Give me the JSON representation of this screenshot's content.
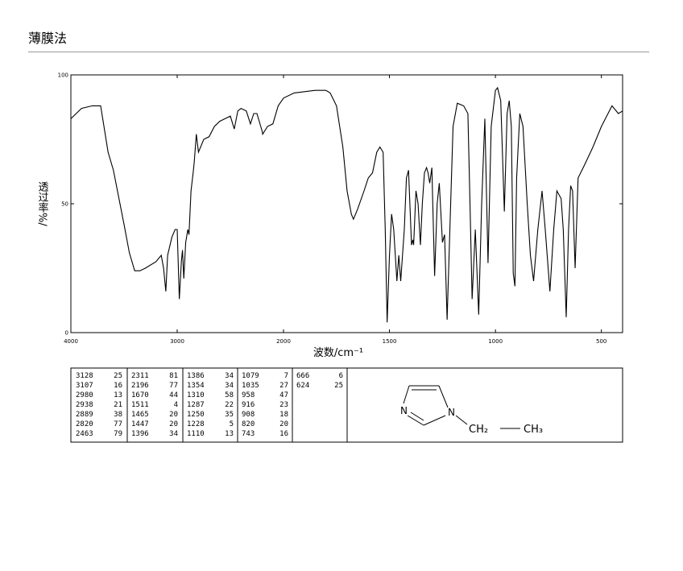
{
  "header": {
    "title": "薄膜法"
  },
  "chart_data": {
    "type": "line",
    "xlabel": "波数/cm⁻¹",
    "ylabel": "透过率%/",
    "xlim": [
      4000,
      400
    ],
    "x_scale_change": 2000,
    "ylim": [
      0,
      100
    ],
    "xticks": [
      4000,
      3000,
      2000,
      1500,
      1000,
      500
    ],
    "yticks": [
      0,
      50,
      100
    ],
    "color": "#000000",
    "x": [
      4000,
      3900,
      3800,
      3720,
      3650,
      3600,
      3500,
      3450,
      3400,
      3350,
      3300,
      3200,
      3150,
      3128,
      3107,
      3090,
      3050,
      3020,
      3000,
      2980,
      2960,
      2950,
      2938,
      2920,
      2900,
      2889,
      2870,
      2850,
      2840,
      2820,
      2800,
      2750,
      2700,
      2650,
      2600,
      2550,
      2500,
      2463,
      2430,
      2400,
      2350,
      2311,
      2280,
      2250,
      2200,
      2196,
      2150,
      2100,
      2050,
      2000,
      1950,
      1900,
      1850,
      1800,
      1780,
      1750,
      1720,
      1700,
      1680,
      1670,
      1650,
      1620,
      1600,
      1580,
      1560,
      1545,
      1530,
      1520,
      1511,
      1500,
      1490,
      1480,
      1465,
      1456,
      1447,
      1430,
      1420,
      1410,
      1396,
      1390,
      1386,
      1375,
      1365,
      1354,
      1345,
      1335,
      1325,
      1318,
      1310,
      1300,
      1287,
      1275,
      1265,
      1250,
      1240,
      1228,
      1215,
      1200,
      1180,
      1150,
      1130,
      1120,
      1110,
      1095,
      1079,
      1065,
      1050,
      1035,
      1020,
      1000,
      990,
      975,
      958,
      945,
      935,
      925,
      916,
      908,
      900,
      885,
      870,
      850,
      835,
      820,
      800,
      780,
      765,
      743,
      725,
      710,
      690,
      680,
      666,
      655,
      645,
      636,
      624,
      610,
      580,
      540,
      500,
      450,
      420,
      400
    ],
    "values": [
      83,
      87,
      88,
      88,
      70,
      63,
      42,
      31,
      24,
      24,
      25,
      27.5,
      30,
      25,
      16,
      30,
      37,
      40,
      40,
      13,
      28,
      32,
      21,
      35,
      40,
      38,
      55,
      62,
      66,
      77,
      70,
      75,
      76,
      80,
      82,
      83,
      84,
      79,
      86,
      87,
      86,
      81,
      85,
      85,
      78,
      77,
      80,
      81,
      88,
      91,
      93,
      93.5,
      94,
      94,
      93,
      88,
      72,
      55,
      46,
      44,
      48,
      55,
      60,
      62,
      70,
      72,
      70,
      40,
      4,
      30,
      46,
      40,
      20,
      30,
      20,
      40,
      60,
      63,
      34,
      36,
      34,
      55,
      50,
      34,
      50,
      62,
      64,
      62,
      58,
      64,
      22,
      50,
      58,
      35,
      38,
      5,
      40,
      80,
      89,
      88,
      85,
      50,
      13,
      40,
      7,
      50,
      83,
      27,
      80,
      94,
      95,
      90,
      47,
      85,
      90,
      80,
      23,
      18,
      60,
      85,
      80,
      50,
      30,
      20,
      40,
      55,
      40,
      16,
      40,
      55,
      52,
      40,
      6,
      40,
      57,
      55,
      25,
      60,
      65,
      72,
      80,
      88,
      85,
      86
    ]
  },
  "peak_table": [
    [
      [
        3128,
        25
      ],
      [
        3107,
        16
      ],
      [
        2980,
        13
      ],
      [
        2938,
        21
      ],
      [
        2889,
        38
      ],
      [
        2820,
        77
      ],
      [
        2463,
        79
      ]
    ],
    [
      [
        2311,
        81
      ],
      [
        2196,
        77
      ],
      [
        1670,
        44
      ],
      [
        1511,
        4
      ],
      [
        1465,
        20
      ],
      [
        1447,
        20
      ],
      [
        1396,
        34
      ]
    ],
    [
      [
        1386,
        34
      ],
      [
        1354,
        34
      ],
      [
        1310,
        58
      ],
      [
        1287,
        22
      ],
      [
        1250,
        35
      ],
      [
        1228,
        5
      ],
      [
        1110,
        13
      ]
    ],
    [
      [
        1079,
        7
      ],
      [
        1035,
        27
      ],
      [
        958,
        47
      ],
      [
        916,
        23
      ],
      [
        908,
        18
      ],
      [
        820,
        20
      ],
      [
        743,
        16
      ]
    ],
    [
      [
        666,
        6
      ],
      [
        624,
        25
      ]
    ]
  ],
  "structure": {
    "n_left": "N",
    "n_right": "N",
    "ch2": "CH₂",
    "ch3": "CH₃"
  }
}
